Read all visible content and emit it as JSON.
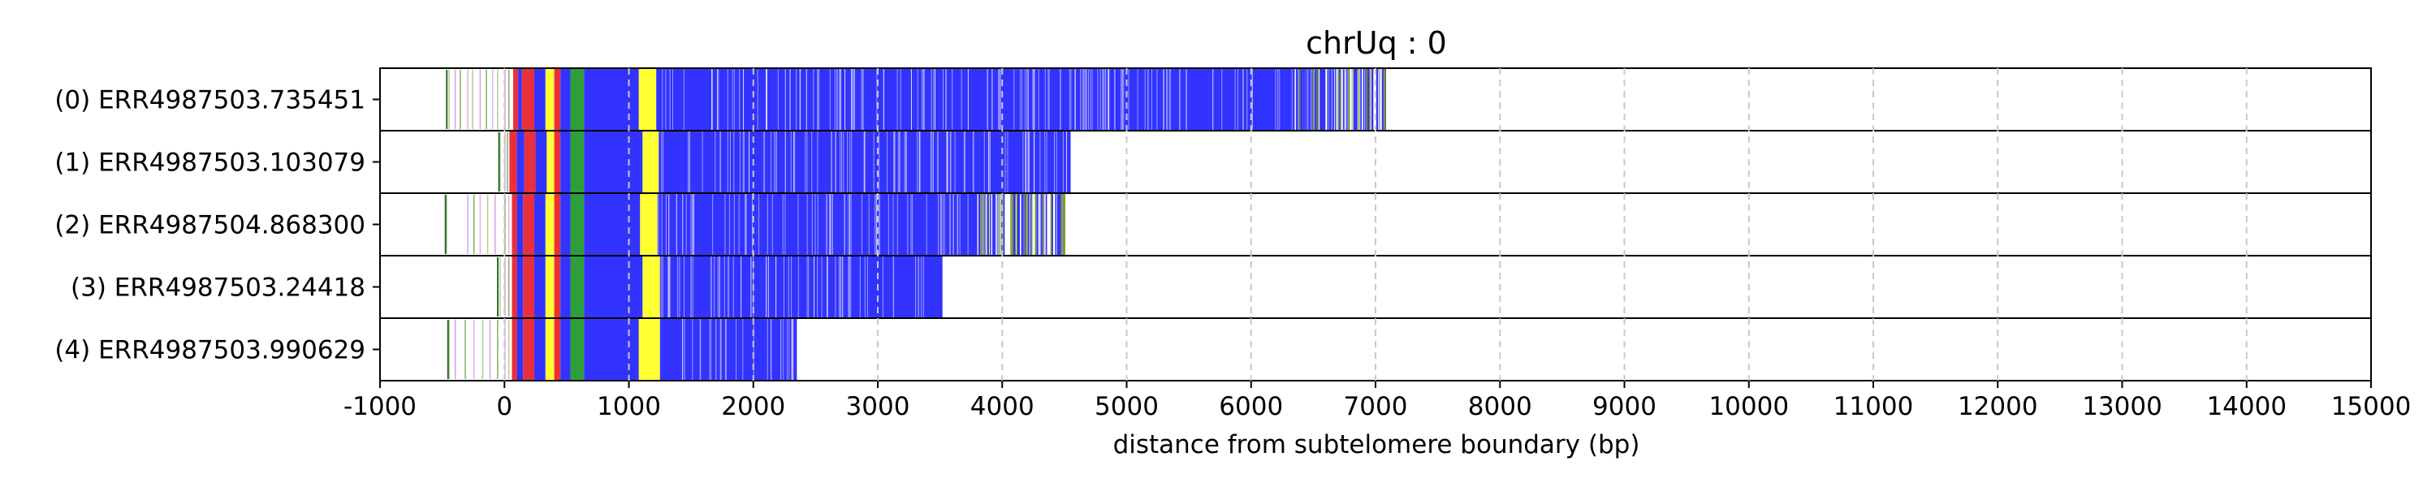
{
  "chart_data": {
    "type": "bar",
    "title": "chrUq : 0",
    "xlabel": "distance from subtelomere boundary (bp)",
    "ylabel": "",
    "xlim": [
      -1000,
      15000
    ],
    "x_ticks": [
      -1000,
      0,
      1000,
      2000,
      3000,
      4000,
      5000,
      6000,
      7000,
      8000,
      9000,
      10000,
      11000,
      12000,
      13000,
      14000,
      15000
    ],
    "x_tick_labels": [
      "-1000",
      "0",
      "1000",
      "2000",
      "3000",
      "4000",
      "5000",
      "6000",
      "7000",
      "8000",
      "9000",
      "10000",
      "11000",
      "12000",
      "13000",
      "14000",
      "15000"
    ],
    "grid": "x-dashed",
    "colors": {
      "blue": "#3333ff",
      "yellow": "#ffff33",
      "red": "#e8303c",
      "green": "#2e9e3a",
      "olive": "#7a9a2a",
      "pink": "#e080e0",
      "white_gap": "#ffffff"
    },
    "reads": [
      {
        "label": "(0) ERR4987503.735451",
        "start": -470,
        "end": 7080,
        "segments": [
          {
            "from": 70,
            "to": 110,
            "color": "red"
          },
          {
            "from": 110,
            "to": 140,
            "color": "blue"
          },
          {
            "from": 140,
            "to": 240,
            "color": "red"
          },
          {
            "from": 240,
            "to": 330,
            "color": "blue"
          },
          {
            "from": 330,
            "to": 400,
            "color": "yellow"
          },
          {
            "from": 400,
            "to": 450,
            "color": "red"
          },
          {
            "from": 450,
            "to": 530,
            "color": "blue"
          },
          {
            "from": 530,
            "to": 640,
            "color": "green"
          },
          {
            "from": 640,
            "to": 1080,
            "color": "blue"
          },
          {
            "from": 1080,
            "to": 1220,
            "color": "yellow"
          },
          {
            "from": 1220,
            "to": 6350,
            "color": "blue"
          }
        ],
        "sparse_tail": {
          "from": 6350,
          "to": 7080
        },
        "pre_marks": [
          -450,
          -400,
          -360,
          -300,
          -260,
          -200,
          -150,
          -100,
          -60,
          0,
          30
        ]
      },
      {
        "label": "(1) ERR4987503.103079",
        "start": -50,
        "end": 4550,
        "segments": [
          {
            "from": 40,
            "to": 100,
            "color": "red"
          },
          {
            "from": 100,
            "to": 160,
            "color": "blue"
          },
          {
            "from": 160,
            "to": 250,
            "color": "red"
          },
          {
            "from": 250,
            "to": 340,
            "color": "blue"
          },
          {
            "from": 340,
            "to": 400,
            "color": "yellow"
          },
          {
            "from": 400,
            "to": 450,
            "color": "red"
          },
          {
            "from": 450,
            "to": 530,
            "color": "blue"
          },
          {
            "from": 530,
            "to": 640,
            "color": "green"
          },
          {
            "from": 640,
            "to": 1110,
            "color": "blue"
          },
          {
            "from": 1110,
            "to": 1240,
            "color": "yellow"
          },
          {
            "from": 1240,
            "to": 4550,
            "color": "blue"
          }
        ],
        "sparse_tail": null,
        "pre_marks": [
          -40,
          0,
          20
        ]
      },
      {
        "label": "(2) ERR4987504.868300",
        "start": -480,
        "end": 4500,
        "segments": [
          {
            "from": 60,
            "to": 100,
            "color": "red"
          },
          {
            "from": 100,
            "to": 150,
            "color": "blue"
          },
          {
            "from": 150,
            "to": 240,
            "color": "red"
          },
          {
            "from": 240,
            "to": 330,
            "color": "blue"
          },
          {
            "from": 330,
            "to": 400,
            "color": "yellow"
          },
          {
            "from": 400,
            "to": 450,
            "color": "red"
          },
          {
            "from": 450,
            "to": 530,
            "color": "blue"
          },
          {
            "from": 530,
            "to": 640,
            "color": "green"
          },
          {
            "from": 640,
            "to": 1090,
            "color": "blue"
          },
          {
            "from": 1090,
            "to": 1230,
            "color": "yellow"
          },
          {
            "from": 1230,
            "to": 3800,
            "color": "blue"
          }
        ],
        "sparse_tail": {
          "from": 3800,
          "to": 4500
        },
        "pre_marks": [
          -470,
          -300,
          -250,
          -200,
          -140,
          -80,
          0,
          30
        ]
      },
      {
        "label": "(3) ERR4987503.24418",
        "start": -60,
        "end": 3520,
        "segments": [
          {
            "from": 60,
            "to": 100,
            "color": "red"
          },
          {
            "from": 100,
            "to": 150,
            "color": "blue"
          },
          {
            "from": 150,
            "to": 240,
            "color": "red"
          },
          {
            "from": 240,
            "to": 330,
            "color": "blue"
          },
          {
            "from": 330,
            "to": 400,
            "color": "yellow"
          },
          {
            "from": 400,
            "to": 450,
            "color": "red"
          },
          {
            "from": 450,
            "to": 530,
            "color": "blue"
          },
          {
            "from": 530,
            "to": 640,
            "color": "green"
          },
          {
            "from": 640,
            "to": 1110,
            "color": "blue"
          },
          {
            "from": 1110,
            "to": 1250,
            "color": "yellow"
          },
          {
            "from": 1250,
            "to": 3520,
            "color": "blue"
          }
        ],
        "sparse_tail": null,
        "pre_marks": [
          -40,
          0,
          30
        ]
      },
      {
        "label": "(4) ERR4987503.990629",
        "start": -460,
        "end": 2350,
        "segments": [
          {
            "from": 60,
            "to": 100,
            "color": "red"
          },
          {
            "from": 100,
            "to": 150,
            "color": "blue"
          },
          {
            "from": 150,
            "to": 240,
            "color": "red"
          },
          {
            "from": 240,
            "to": 330,
            "color": "blue"
          },
          {
            "from": 330,
            "to": 400,
            "color": "yellow"
          },
          {
            "from": 400,
            "to": 450,
            "color": "red"
          },
          {
            "from": 450,
            "to": 530,
            "color": "blue"
          },
          {
            "from": 530,
            "to": 640,
            "color": "green"
          },
          {
            "from": 640,
            "to": 1080,
            "color": "blue"
          },
          {
            "from": 1080,
            "to": 1250,
            "color": "yellow"
          },
          {
            "from": 1250,
            "to": 2350,
            "color": "blue"
          }
        ],
        "sparse_tail": null,
        "pre_marks": [
          -450,
          -400,
          -320,
          -250,
          -180,
          -120,
          -60,
          0,
          30
        ]
      }
    ]
  }
}
